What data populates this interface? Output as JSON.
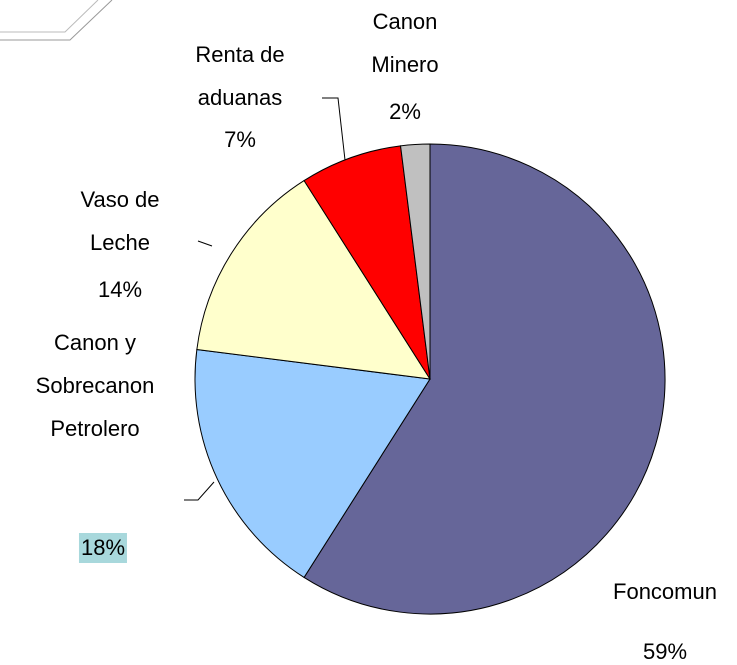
{
  "chart_data": {
    "type": "pie",
    "categories": [
      "Foncomun",
      "Canon y Sobrecanon Petrolero",
      "Vaso de Leche",
      "Renta de aduanas",
      "Canon Minero"
    ],
    "values": [
      59,
      18,
      14,
      7,
      2
    ],
    "value_labels": [
      "59%",
      "18%",
      "14%",
      "7%",
      "2%"
    ],
    "colors": [
      "#666699",
      "#99ccff",
      "#ffffcc",
      "#ff0000",
      "#c0c0c0"
    ]
  }
}
